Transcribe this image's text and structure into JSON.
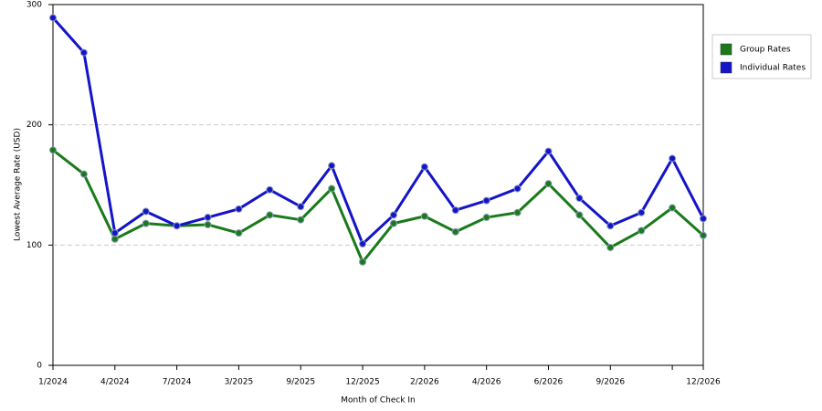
{
  "chart_data": {
    "type": "line",
    "x_label": "Month of Check In",
    "y_label": "Lowest Average Rate (USD)",
    "categories": [
      "1/2024",
      null,
      "4/2024",
      null,
      "7/2024",
      null,
      "3/2025",
      null,
      "9/2025",
      null,
      "12/2025",
      null,
      "2/2026",
      null,
      "4/2026",
      null,
      "6/2026",
      null,
      "9/2026",
      null,
      null,
      "12/2026"
    ],
    "series": [
      {
        "name": "Group Rates",
        "color": "#1a7a1a",
        "values": [
          179,
          159,
          105,
          118,
          116,
          117,
          110,
          125,
          121,
          147,
          86,
          118,
          124,
          111,
          123,
          127,
          151,
          125,
          98,
          112,
          131,
          108
        ]
      },
      {
        "name": "Individual Rates",
        "color": "#1414c8",
        "values": [
          289,
          260,
          110,
          128,
          116,
          123,
          130,
          146,
          132,
          166,
          101,
          125,
          165,
          129,
          137,
          147,
          178,
          139,
          116,
          127,
          172,
          122
        ]
      }
    ],
    "ylim": [
      0,
      300
    ],
    "yticks": [
      0,
      100,
      200,
      300
    ],
    "grid": true,
    "legend": "right"
  }
}
